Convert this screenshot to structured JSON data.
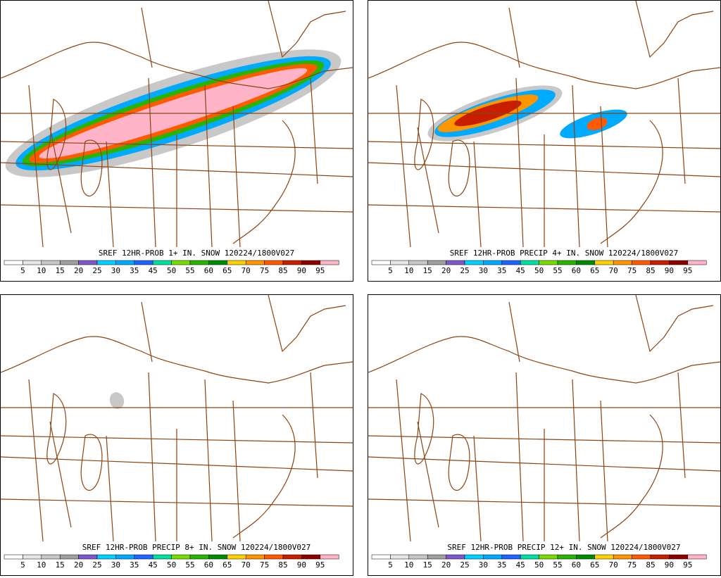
{
  "panels": [
    {
      "title": "SREF 12HR-PROB 1+ IN. SNOW 120224/1800V027"
    },
    {
      "title": "SREF 12HR-PROB PRECIP 4+ IN. SNOW 120224/1800V027"
    },
    {
      "title": "SREF 12HR-PROB PRECIP 8+ IN. SNOW 120224/1800V027"
    },
    {
      "title": "SREF 12HR-PROB PRECIP 12+ IN. SNOW 120224/1800V027"
    }
  ],
  "colorbar": {
    "labels": [
      5,
      10,
      15,
      20,
      25,
      30,
      35,
      45,
      50,
      55,
      60,
      65,
      70,
      75,
      85,
      90,
      95
    ],
    "colors": [
      "#ffffff",
      "#e6e6e6",
      "#c8c8c8",
      "#a0a0a0",
      "#7e5ac8",
      "#00d2ff",
      "#00aaff",
      "#1e64ff",
      "#00e0a0",
      "#78dc00",
      "#28b400",
      "#008c00",
      "#ffd200",
      "#ff9600",
      "#ff5a00",
      "#c81e00",
      "#8c0000",
      "#ffb4c8"
    ]
  }
}
